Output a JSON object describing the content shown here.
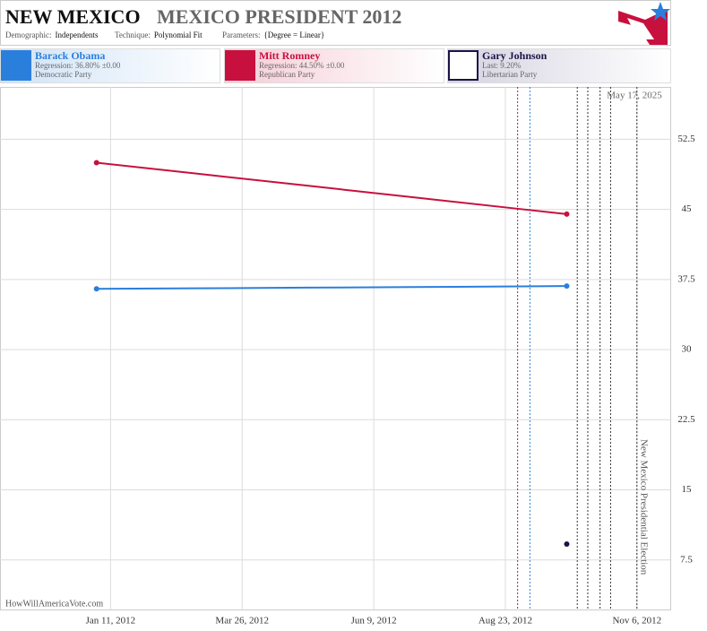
{
  "chart_data": {
    "type": "line",
    "title": "NEW MEXICO",
    "subtitle": "MEXICO PRESIDENT 2012",
    "parameters": [
      {
        "label": "Demographic:",
        "value": "Independents"
      },
      {
        "label": "Technique:",
        "value": "Polynomial Fit"
      },
      {
        "label": "Parameters:",
        "value": "{Degree = Linear}"
      }
    ],
    "date_stamp": "May 17, 2025",
    "watermark": "HowWillAmericaVote.com",
    "series": [
      {
        "name": "Barack Obama",
        "color": "#2a7fdc",
        "detail": "Regression: 36.80% ±0.00",
        "party": "Democratic Party",
        "x": [
          "Jan 3, 2012",
          "Mar 1, 2012",
          "May 1, 2012",
          "Jul 1, 2012",
          "Sep 1, 2012",
          "Sep 27, 2012"
        ],
        "values": [
          36.5,
          36.56,
          36.63,
          36.69,
          36.76,
          36.8
        ]
      },
      {
        "name": "Mitt Romney",
        "color": "#c8103e",
        "detail": "Regression: 44.50% ±0.00",
        "party": "Republican Party",
        "x": [
          "Jan 3, 2012",
          "Mar 1, 2012",
          "May 1, 2012",
          "Jul 1, 2012",
          "Sep 1, 2012",
          "Sep 27, 2012"
        ],
        "values": [
          50.0,
          48.81,
          47.56,
          46.31,
          45.03,
          44.5
        ]
      },
      {
        "name": "Gary Johnson",
        "color": "#1a1446",
        "detail": "Last: 9.20%",
        "party": "Libertarian Party",
        "x": [
          "Sep 27, 2012"
        ],
        "values": [
          9.2
        ]
      }
    ],
    "events": [
      {
        "date": "Aug 30, 2012",
        "color": "#c8103e"
      },
      {
        "date": "Sep 6, 2012",
        "color": "#2a7fdc"
      },
      {
        "date": "Oct 3, 2012",
        "color": "#333333"
      },
      {
        "date": "Oct 9, 2012",
        "color": "#333333"
      },
      {
        "date": "Oct 16, 2012",
        "color": "#333333"
      },
      {
        "date": "Oct 22, 2012",
        "color": "#333333"
      },
      {
        "date": "Nov 6, 2012",
        "color": "#333333",
        "label": "New Mexico Presidential Election"
      }
    ],
    "xlim": [
      "Nov 9, 2011",
      "Nov 25, 2012"
    ],
    "xticks": [
      "Jan 11, 2012",
      "Mar 26, 2012",
      "Jun 9, 2012",
      "Aug 23, 2012",
      "Nov 6, 2012"
    ],
    "ylim": [
      2.2,
      58.1
    ],
    "yticks": [
      7.5,
      15,
      22.5,
      30,
      37.5,
      45,
      52.5
    ],
    "grid": true
  }
}
